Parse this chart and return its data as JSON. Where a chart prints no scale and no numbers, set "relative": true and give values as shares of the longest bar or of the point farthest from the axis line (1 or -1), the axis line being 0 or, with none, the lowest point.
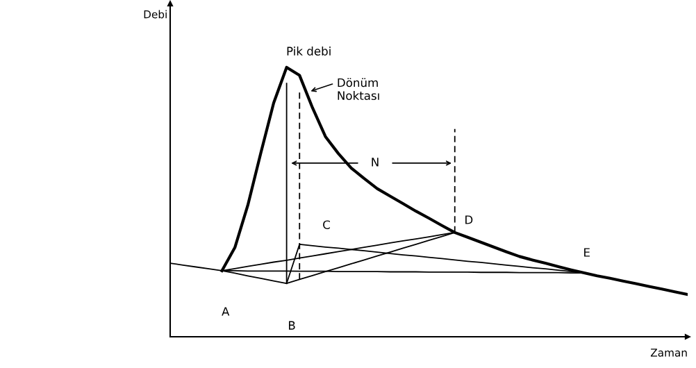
{
  "chart_data": {
    "type": "line",
    "relative": true,
    "xlabel": "Zaman",
    "ylabel": "Debi",
    "categories": [
      null,
      null,
      null,
      null,
      null,
      null,
      null,
      null,
      null,
      null,
      null,
      null,
      null,
      null,
      null,
      null,
      null,
      null,
      null,
      null,
      null,
      null,
      null,
      null,
      null,
      null,
      null,
      null,
      null,
      null,
      null,
      null,
      null,
      null,
      null,
      null,
      null,
      null,
      null,
      null,
      null
    ],
    "series": [
      {
        "color": "#000000",
        "values": [
          null,
          null,
          null,
          null,
          0.245,
          0.331,
          0.488,
          0.681,
          0.868,
          1.0,
          0.97,
          0.85,
          0.743,
          0.68,
          0.626,
          0.587,
          0.55,
          0.522,
          0.494,
          0.466,
          0.44,
          0.413,
          0.387,
          0.369,
          0.351,
          0.333,
          0.315,
          0.298,
          0.285,
          0.273,
          0.26,
          0.248,
          0.237,
          0.226,
          0.217,
          0.207,
          0.197,
          0.187,
          0.177,
          0.167,
          0.157
        ]
      },
      {
        "color": "#000000",
        "values": [
          0.273,
          0.266,
          0.259,
          0.252,
          0.245,
          0.236,
          0.226,
          0.217,
          0.207,
          0.198,
          null,
          null,
          null,
          null,
          null,
          null,
          null,
          null,
          null,
          null,
          null,
          null,
          null,
          null,
          null,
          null,
          null,
          null,
          null,
          null,
          null,
          null,
          null,
          null,
          null,
          null,
          null,
          null,
          null,
          null,
          null
        ]
      },
      {
        "color": "#000000",
        "values": [
          null,
          null,
          null,
          null,
          null,
          null,
          null,
          null,
          null,
          0.198,
          0.343,
          0.338,
          0.333,
          0.329,
          0.324,
          0.319,
          0.314,
          0.309,
          0.304,
          0.3,
          0.295,
          0.29,
          0.285,
          0.28,
          0.276,
          0.271,
          0.266,
          0.261,
          0.256,
          0.252,
          0.247,
          0.242,
          0.237,
          null,
          null,
          null,
          null,
          null,
          null,
          null,
          null
        ]
      },
      {
        "color": "#000000",
        "values": [
          null,
          null,
          null,
          null,
          0.245,
          0.253,
          0.261,
          0.269,
          0.277,
          0.284,
          0.292,
          0.3,
          0.308,
          0.316,
          0.324,
          0.332,
          0.34,
          0.348,
          0.356,
          0.363,
          0.371,
          0.379,
          0.387,
          null,
          null,
          null,
          null,
          null,
          null,
          null,
          null,
          null,
          null,
          null,
          null,
          null,
          null,
          null,
          null,
          null,
          null
        ]
      },
      {
        "color": "#000000",
        "values": [
          null,
          null,
          null,
          null,
          null,
          null,
          null,
          null,
          null,
          0.198,
          0.213,
          0.227,
          0.242,
          0.256,
          0.271,
          0.285,
          0.3,
          0.314,
          0.329,
          0.343,
          0.358,
          0.372,
          0.387,
          null,
          null,
          null,
          null,
          null,
          null,
          null,
          null,
          null,
          null,
          null,
          null,
          null,
          null,
          null,
          null,
          null,
          null
        ]
      },
      {
        "color": "#000000",
        "values": [
          null,
          null,
          null,
          null,
          0.245,
          0.245,
          0.244,
          0.244,
          0.244,
          0.244,
          0.243,
          0.243,
          0.243,
          0.242,
          0.242,
          0.242,
          0.242,
          0.241,
          0.241,
          0.241,
          0.24,
          0.24,
          0.24,
          0.24,
          0.239,
          0.239,
          0.239,
          0.238,
          0.238,
          0.238,
          0.238,
          0.237,
          0.237,
          null,
          null,
          null,
          null,
          null,
          null,
          null,
          null
        ]
      }
    ],
    "annotations": [
      "Pik debi",
      "Dönüm\nNoktası",
      "N",
      "A",
      "B",
      "C",
      "D",
      "E"
    ]
  }
}
